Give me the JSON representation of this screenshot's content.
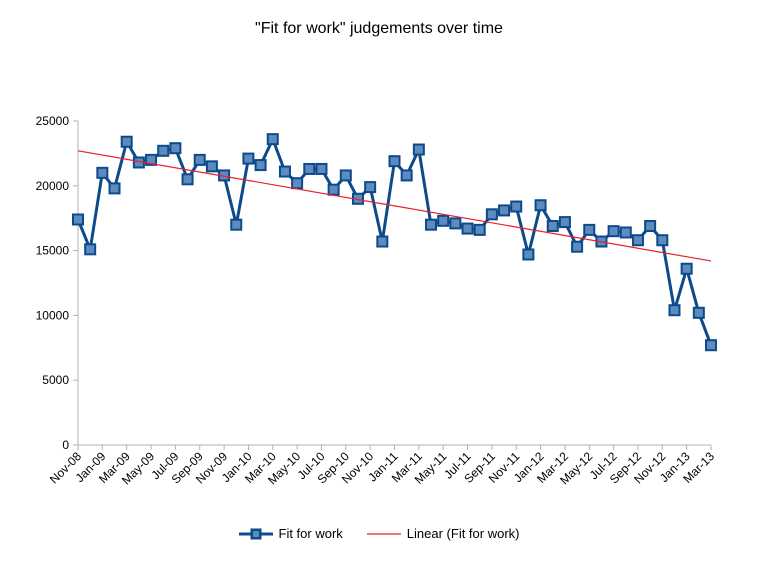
{
  "chart_data": {
    "type": "line",
    "title": "\"Fit for work\" judgements over time",
    "xlabel": "",
    "ylabel": "",
    "ylim": [
      0,
      25000
    ],
    "yticks": [
      0,
      5000,
      10000,
      15000,
      20000,
      25000
    ],
    "grid": false,
    "legend_position": "bottom",
    "x_tick_labels": [
      "Nov-08",
      "Jan-09",
      "Mar-09",
      "May-09",
      "Jul-09",
      "Sep-09",
      "Nov-09",
      "Jan-10",
      "Mar-10",
      "May-10",
      "Jul-10",
      "Sep-10",
      "Nov-10",
      "Jan-11",
      "Mar-11",
      "May-11",
      "Jul-11",
      "Sep-11",
      "Nov-11",
      "Jan-12",
      "Mar-12",
      "May-12",
      "Jul-12",
      "Sep-12",
      "Nov-12",
      "Jan-13",
      "Mar-13"
    ],
    "categories": [
      "Nov-08",
      "Dec-08",
      "Jan-09",
      "Feb-09",
      "Mar-09",
      "Apr-09",
      "May-09",
      "Jun-09",
      "Jul-09",
      "Aug-09",
      "Sep-09",
      "Oct-09",
      "Nov-09",
      "Dec-09",
      "Jan-10",
      "Feb-10",
      "Mar-10",
      "Apr-10",
      "May-10",
      "Jun-10",
      "Jul-10",
      "Aug-10",
      "Sep-10",
      "Oct-10",
      "Nov-10",
      "Dec-10",
      "Jan-11",
      "Feb-11",
      "Mar-11",
      "Apr-11",
      "May-11",
      "Jun-11",
      "Jul-11",
      "Aug-11",
      "Sep-11",
      "Oct-11",
      "Nov-11",
      "Dec-11",
      "Jan-12",
      "Feb-12",
      "Mar-12",
      "Apr-12",
      "May-12",
      "Jun-12",
      "Jul-12",
      "Aug-12",
      "Sep-12",
      "Oct-12",
      "Nov-12",
      "Dec-12",
      "Jan-13",
      "Feb-13",
      "Mar-13"
    ],
    "series": [
      {
        "name": "Fit for work",
        "color": "#0d4a8a",
        "marker": "square",
        "values": [
          17400,
          15100,
          21000,
          19800,
          23400,
          21800,
          22000,
          22700,
          22900,
          20500,
          22000,
          21500,
          20800,
          17000,
          22100,
          21600,
          23600,
          21100,
          20200,
          21300,
          21300,
          19700,
          20800,
          19000,
          19900,
          15700,
          21900,
          20800,
          22800,
          17000,
          17300,
          17100,
          16700,
          16600,
          17800,
          18100,
          18400,
          14700,
          18500,
          16900,
          17200,
          15300,
          16600,
          15700,
          16500,
          16400,
          15800,
          16900,
          15800,
          10400,
          13600,
          10200,
          7700
        ]
      }
    ],
    "trendline": {
      "name": "Linear (Fit for work)",
      "color": "#e8202a",
      "start": 22700,
      "end": 14200
    }
  }
}
